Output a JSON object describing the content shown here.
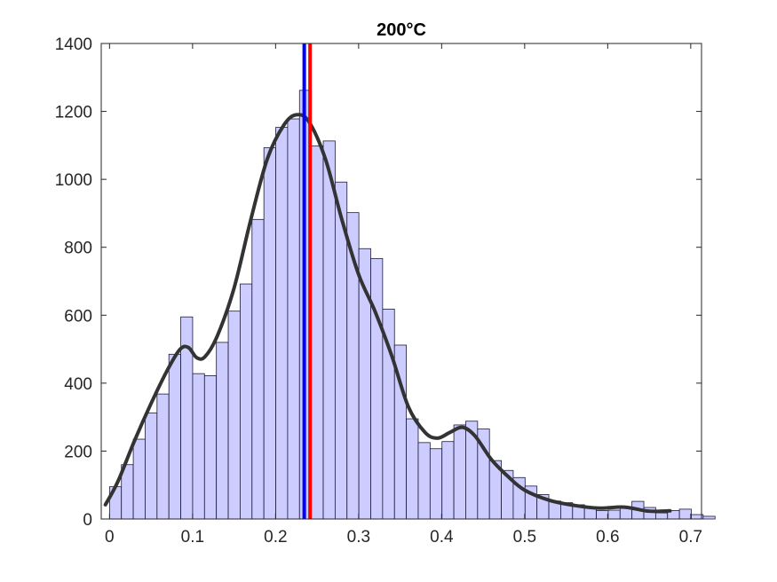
{
  "chart_data": {
    "type": "bar",
    "title": "200°C",
    "xlabel": "",
    "ylabel": "",
    "xlim": [
      -0.01,
      0.713
    ],
    "ylim": [
      0,
      1400
    ],
    "xticks": [
      0,
      0.1,
      0.2,
      0.3,
      0.4,
      0.5,
      0.6,
      0.7
    ],
    "xtick_labels": [
      "0",
      "0.1",
      "0.2",
      "0.3",
      "0.4",
      "0.5",
      "0.6",
      "0.7"
    ],
    "yticks": [
      0,
      200,
      400,
      600,
      800,
      1000,
      1200,
      1400
    ],
    "ytick_labels": [
      "0",
      "200",
      "400",
      "600",
      "800",
      "1000",
      "1200",
      "1400"
    ],
    "grid": false,
    "histogram": {
      "bin_start": 0,
      "bin_width": 0.0143,
      "counts": [
        95,
        160,
        235,
        312,
        368,
        485,
        595,
        428,
        422,
        520,
        612,
        692,
        882,
        1093,
        1153,
        1178,
        1262,
        1098,
        1113,
        992,
        902,
        796,
        767,
        618,
        512,
        295,
        225,
        207,
        228,
        277,
        288,
        265,
        172,
        143,
        122,
        97,
        72,
        53,
        48,
        42,
        36,
        25,
        26,
        33,
        52,
        34,
        18,
        25,
        29,
        13,
        8
      ],
      "face_color": "#CCCCFF",
      "edge_color": "#1A1A3A"
    },
    "density_curve": {
      "color": "#333333",
      "x": [
        -0.005,
        0.01,
        0.03,
        0.05,
        0.07,
        0.085,
        0.095,
        0.105,
        0.115,
        0.13,
        0.15,
        0.17,
        0.19,
        0.21,
        0.225,
        0.24,
        0.26,
        0.28,
        0.3,
        0.32,
        0.34,
        0.36,
        0.38,
        0.395,
        0.41,
        0.425,
        0.44,
        0.46,
        0.48,
        0.5,
        0.53,
        0.56,
        0.59,
        0.62,
        0.65,
        0.675
      ],
      "y": [
        42,
        110,
        230,
        340,
        440,
        500,
        505,
        475,
        478,
        540,
        680,
        880,
        1060,
        1160,
        1190,
        1170,
        1060,
        880,
        720,
        610,
        480,
        330,
        255,
        238,
        255,
        270,
        245,
        175,
        125,
        85,
        55,
        40,
        32,
        35,
        23,
        24
      ]
    },
    "vertical_lines": [
      {
        "x": 0.2345,
        "color": "#0000FF"
      },
      {
        "x": 0.2415,
        "color": "#FF0000"
      }
    ]
  }
}
